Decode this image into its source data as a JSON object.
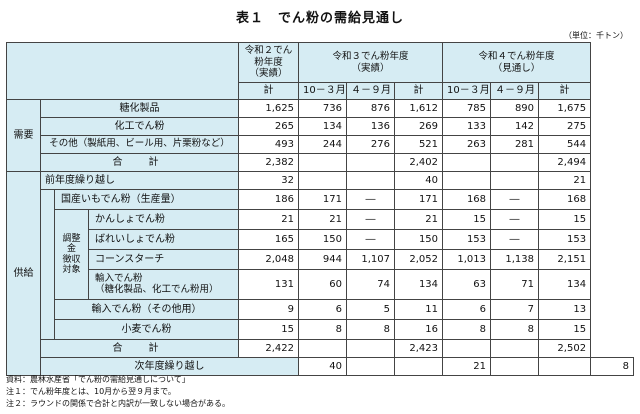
{
  "title": "表１　でん粉の需給見通し",
  "unit": "（単位：千トン）",
  "header": {
    "col1": "令和２でん粉年度\n（実績）",
    "col2": "令和３でん粉年度\n（実績）",
    "col3": "令和４でん粉年度\n（見通し）",
    "kei": "計",
    "oct_mar": "10－３月",
    "apr_sep": "４－９月"
  },
  "groups": {
    "demand": "需要",
    "supply": "供給",
    "adjust": "調整金\n徴収\n対象"
  },
  "rows": [
    {
      "label": "糖化製品",
      "v": [
        "1,625",
        "736",
        "876",
        "1,612",
        "785",
        "890",
        "1,675"
      ]
    },
    {
      "label": "化工でん粉",
      "v": [
        "265",
        "134",
        "136",
        "269",
        "133",
        "142",
        "275"
      ]
    },
    {
      "label": "その他（製紙用、ビール用、片栗粉など）",
      "v": [
        "493",
        "244",
        "276",
        "521",
        "263",
        "281",
        "544"
      ]
    },
    {
      "label": "合　計",
      "v": [
        "2,382",
        "",
        "",
        "2,402",
        "",
        "",
        "2,494"
      ]
    },
    {
      "label": "前年度繰り越し",
      "v": [
        "32",
        "",
        "",
        "40",
        "",
        "",
        "21"
      ]
    },
    {
      "label": "国産いもでん粉（生産量）",
      "v": [
        "186",
        "171",
        "―",
        "171",
        "168",
        "―",
        "168"
      ]
    },
    {
      "label": "かんしょでん粉",
      "v": [
        "21",
        "21",
        "―",
        "21",
        "15",
        "―",
        "15"
      ]
    },
    {
      "label": "ばれいしょでん粉",
      "v": [
        "165",
        "150",
        "―",
        "150",
        "153",
        "―",
        "153"
      ]
    },
    {
      "label": "コーンスターチ",
      "v": [
        "2,048",
        "944",
        "1,107",
        "2,052",
        "1,013",
        "1,138",
        "2,151"
      ]
    },
    {
      "label": "輸入でん粉\n（糖化製品、化工でん粉用）",
      "v": [
        "131",
        "60",
        "74",
        "134",
        "63",
        "71",
        "134"
      ]
    },
    {
      "label": "輸入でん粉（その他用）",
      "v": [
        "9",
        "6",
        "5",
        "11",
        "6",
        "7",
        "13"
      ]
    },
    {
      "label": "小麦でん粉",
      "v": [
        "15",
        "8",
        "8",
        "16",
        "8",
        "8",
        "15"
      ]
    },
    {
      "label": "合　計",
      "v": [
        "2,422",
        "",
        "",
        "2,423",
        "",
        "",
        "2,502"
      ]
    },
    {
      "label": "次年度繰り越し",
      "v": [
        "40",
        "",
        "",
        "21",
        "",
        "",
        "8"
      ]
    }
  ],
  "notes": [
    "資料：農林水産省「でん粉の需給見通しについて」",
    "注１：でん粉年度とは、10月から翌９月まで。",
    "注２：ラウンドの関係で合計と内訳が一致しない場合がある。"
  ]
}
